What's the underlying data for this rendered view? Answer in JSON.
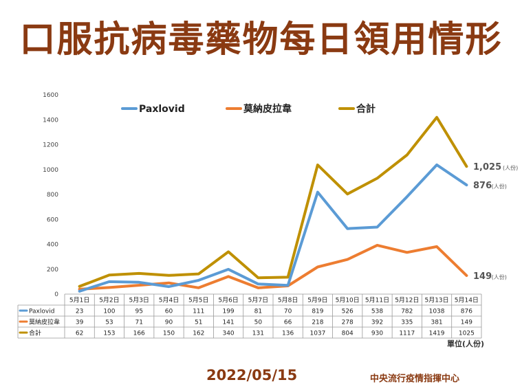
{
  "header": {
    "title": "口服抗病毒藥物每日領用情形"
  },
  "footer": {
    "date": "2022/05/15",
    "source": "中央流行疫情指揮中心"
  },
  "unit": "單位(人份)",
  "chart_data": {
    "type": "line",
    "categories": [
      "5月1日",
      "5月2日",
      "5月3日",
      "5月4日",
      "5月5日",
      "5月6日",
      "5月7日",
      "5月8日",
      "5月9日",
      "5月10日",
      "5月11日",
      "5月12日",
      "5月13日",
      "5月14日"
    ],
    "series": [
      {
        "name": "Paxlovid",
        "color": "#5b9bd5",
        "values": [
          23,
          100,
          95,
          60,
          111,
          199,
          81,
          70,
          819,
          526,
          538,
          782,
          1038,
          876
        ]
      },
      {
        "name": "莫納皮拉韋",
        "color": "#ed7d31",
        "values": [
          39,
          53,
          71,
          90,
          51,
          141,
          50,
          66,
          218,
          278,
          392,
          335,
          381,
          149
        ]
      },
      {
        "name": "合計",
        "color": "#bf9000",
        "values": [
          62,
          153,
          166,
          150,
          162,
          340,
          131,
          136,
          1037,
          804,
          930,
          1117,
          1419,
          1025
        ]
      }
    ],
    "yticks": [
      "0",
      "200",
      "400",
      "600",
      "800",
      "1000",
      "1200",
      "1400",
      "1600"
    ],
    "ylim": [
      0,
      1600
    ],
    "grid": false,
    "legend": "top",
    "end_labels": [
      {
        "series": 2,
        "value": "1,025",
        "unit": "(人份)"
      },
      {
        "series": 0,
        "value": "876",
        "unit": "(人份)"
      },
      {
        "series": 1,
        "value": "149",
        "unit": "(人份)"
      }
    ]
  }
}
